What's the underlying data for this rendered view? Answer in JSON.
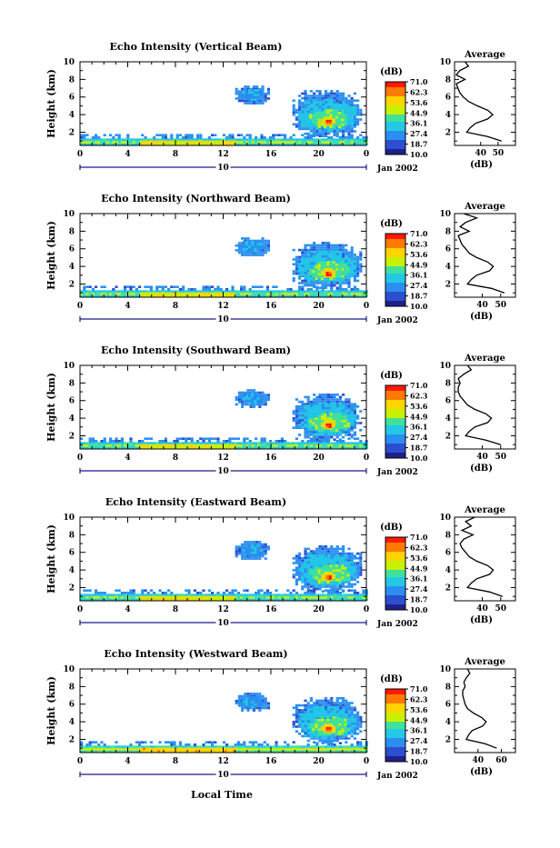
{
  "colorbar": {
    "unit_label": "(dB)",
    "ticks": [
      "71.0",
      "62.3",
      "53.6",
      "44.9",
      "36.1",
      "27.4",
      "18.7",
      "10.0"
    ],
    "colors": [
      "#ff1a00",
      "#ff7a00",
      "#ffd400",
      "#c8f000",
      "#3fe29a",
      "#22c8e6",
      "#2a8ff0",
      "#2b4fd0",
      "#20208a"
    ]
  },
  "shared": {
    "ylabel": "Height (km)",
    "avg_title": "Average",
    "avg_xlabel": "(dB)",
    "day_label": "10",
    "date_label": "Jan 2002",
    "xlabel": "Local Time",
    "x_ticks": [
      "0",
      "4",
      "8",
      "12",
      "16",
      "20",
      "0"
    ],
    "y_ticks": [
      "2",
      "4",
      "6",
      "8",
      "10"
    ]
  },
  "chart_data": [
    {
      "type": "heatmap",
      "title": "Echo Intensity (Vertical Beam)",
      "xlim": [
        0,
        24
      ],
      "ylim": [
        0.5,
        10
      ],
      "avg_profile": {
        "x_ticks": [
          "40",
          "50"
        ],
        "xlim": [
          25,
          60
        ],
        "heights": [
          1.0,
          1.5,
          2.0,
          2.5,
          3.0,
          3.5,
          4.0,
          4.5,
          5.0,
          5.5,
          6.0,
          6.5,
          7.0,
          7.5,
          8.0,
          8.5,
          9.0,
          9.5,
          10.0
        ],
        "values": [
          52,
          44,
          32,
          34,
          37,
          44,
          47,
          44,
          38,
          33,
          30,
          28,
          27,
          26,
          31,
          26,
          28,
          33,
          31
        ]
      }
    },
    {
      "type": "heatmap",
      "title": "Echo Intensity (Northward Beam)",
      "xlim": [
        0,
        24
      ],
      "ylim": [
        0.5,
        10
      ],
      "avg_profile": {
        "x_ticks": [
          "40",
          "50"
        ],
        "xlim": [
          25,
          58
        ],
        "heights": [
          1.0,
          1.5,
          2.0,
          2.5,
          3.0,
          3.5,
          4.0,
          4.5,
          5.0,
          5.5,
          6.0,
          6.5,
          7.0,
          7.5,
          8.0,
          8.5,
          9.0,
          9.5,
          10.0
        ],
        "values": [
          52,
          45,
          32,
          34,
          37,
          44,
          46,
          43,
          37,
          33,
          31,
          29,
          28,
          27,
          33,
          28,
          31,
          37,
          30
        ]
      }
    },
    {
      "type": "heatmap",
      "title": "Echo Intensity (Southward Beam)",
      "xlim": [
        0,
        24
      ],
      "ylim": [
        0.5,
        10
      ],
      "avg_profile": {
        "x_ticks": [
          "40",
          "50"
        ],
        "xlim": [
          25,
          58
        ],
        "heights": [
          1.0,
          1.5,
          2.0,
          2.5,
          3.0,
          3.5,
          4.0,
          4.5,
          5.0,
          5.5,
          6.0,
          6.5,
          7.0,
          7.5,
          8.0,
          8.5,
          9.0,
          9.5,
          10.0
        ],
        "values": [
          50,
          42,
          31,
          33,
          36,
          43,
          45,
          42,
          36,
          32,
          30,
          28,
          27,
          27,
          28,
          27,
          30,
          34,
          32
        ]
      }
    },
    {
      "type": "heatmap",
      "title": "Echo Intensity (Eastward Beam)",
      "xlim": [
        0,
        24
      ],
      "ylim": [
        0.5,
        10
      ],
      "avg_profile": {
        "x_ticks": [
          "40",
          "50"
        ],
        "xlim": [
          25,
          58
        ],
        "heights": [
          1.0,
          1.5,
          2.0,
          2.5,
          3.0,
          3.5,
          4.0,
          4.5,
          5.0,
          5.5,
          6.0,
          6.5,
          7.0,
          7.5,
          8.0,
          8.5,
          9.0,
          9.5,
          10.0
        ],
        "values": [
          51,
          44,
          32,
          34,
          37,
          44,
          46,
          43,
          37,
          33,
          31,
          29,
          28,
          30,
          35,
          29,
          34,
          31,
          36
        ]
      }
    },
    {
      "type": "heatmap",
      "title": "Echo Intensity (Westward Beam)",
      "xlim": [
        0,
        24
      ],
      "ylim": [
        0.5,
        10
      ],
      "avg_profile": {
        "x_ticks": [
          "40",
          "60"
        ],
        "xlim": [
          20,
          72
        ],
        "heights": [
          1.0,
          1.5,
          2.0,
          2.5,
          3.0,
          3.5,
          4.0,
          4.5,
          5.0,
          5.5,
          6.0,
          6.5,
          7.0,
          7.5,
          8.0,
          8.5,
          9.0,
          9.5,
          10.0
        ],
        "values": [
          56,
          46,
          30,
          32,
          35,
          44,
          47,
          43,
          36,
          31,
          29,
          28,
          27,
          27,
          29,
          28,
          30,
          33,
          31
        ]
      }
    }
  ]
}
